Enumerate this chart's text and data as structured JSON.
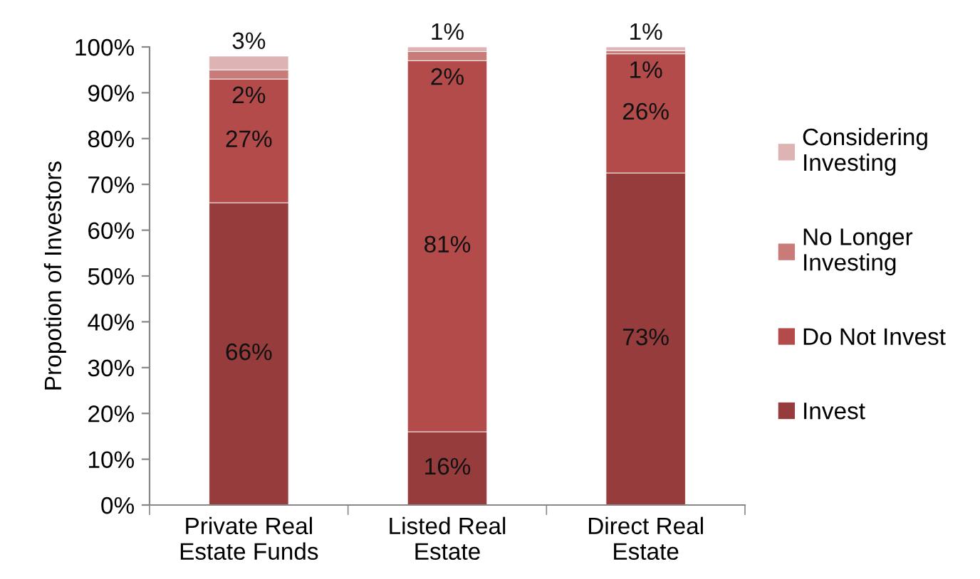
{
  "chart_data": {
    "type": "bar",
    "stacked": true,
    "ylabel": "Propotion of Investors",
    "categories": [
      "Private Real\nEstate Funds",
      "Listed Real\nEstate",
      "Direct Real\nEstate"
    ],
    "series": [
      {
        "name": "Invest",
        "color": "#963c3c",
        "values": [
          66,
          16,
          72.5
        ],
        "value_labels": [
          "66%",
          "16%",
          "73%"
        ]
      },
      {
        "name": "Do Not Invest",
        "color": "#b34b4a",
        "values": [
          27,
          81,
          26
        ],
        "value_labels": [
          "27%",
          "81%",
          "26%"
        ]
      },
      {
        "name": "No Longer\nInvesting",
        "color": "#c97b7a",
        "values": [
          2,
          2,
          0.7
        ],
        "value_labels": [
          "2%",
          "2%",
          "1%"
        ]
      },
      {
        "name": "Considering\nInvesting",
        "color": "#deb3b3",
        "values": [
          3,
          1,
          0.8
        ],
        "value_labels": [
          "3%",
          "1%",
          "1%"
        ]
      }
    ],
    "ylim": [
      0,
      100
    ],
    "yticks": [
      {
        "value": 0,
        "label": "0%"
      },
      {
        "value": 10,
        "label": "10%"
      },
      {
        "value": 20,
        "label": "20%"
      },
      {
        "value": 30,
        "label": "30%"
      },
      {
        "value": 40,
        "label": "40%"
      },
      {
        "value": 50,
        "label": "50%"
      },
      {
        "value": 60,
        "label": "60%"
      },
      {
        "value": 70,
        "label": "70%"
      },
      {
        "value": 80,
        "label": "80%"
      },
      {
        "value": 90,
        "label": "90%"
      },
      {
        "value": 100,
        "label": "100%"
      }
    ],
    "grid": false,
    "legend": "right"
  }
}
